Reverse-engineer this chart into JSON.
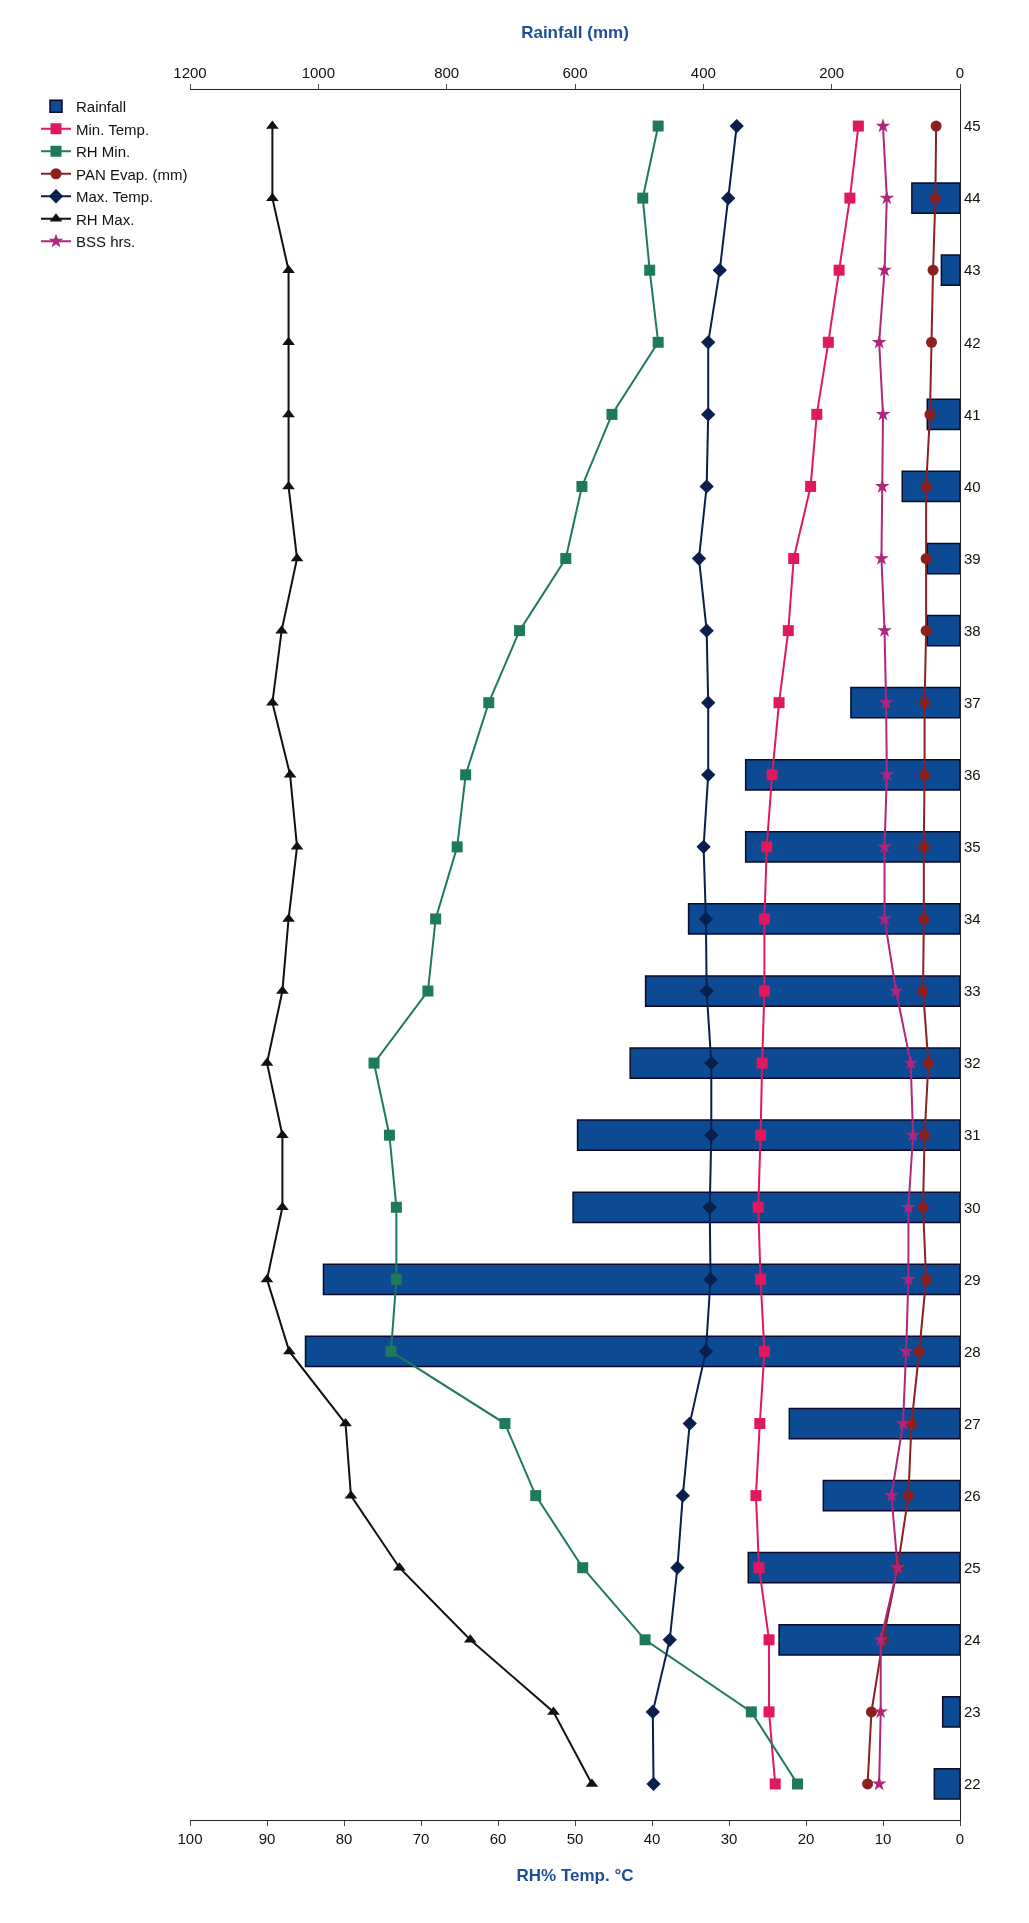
{
  "chart_data": {
    "type": "line",
    "orientation": "horizontal",
    "xlabel": "RH% Temp. °C",
    "x2label": "Rainfall (mm)",
    "categories": [
      "45",
      "44",
      "43",
      "42",
      "41",
      "40",
      "39",
      "38",
      "37",
      "36",
      "35",
      "34",
      "33",
      "32",
      "31",
      "30",
      "29",
      "28",
      "27",
      "26",
      "25",
      "24",
      "23",
      "22"
    ],
    "xlim": [
      100,
      0
    ],
    "xticks": [
      0,
      10,
      20,
      30,
      40,
      50,
      60,
      70,
      80,
      90,
      100
    ],
    "x2lim": [
      1200,
      0
    ],
    "x2ticks": [
      0,
      200,
      400,
      600,
      800,
      1000,
      1200
    ],
    "grid": false,
    "legend": "left",
    "series": [
      {
        "name": "Rainfall",
        "type": "bar",
        "axis": "x2",
        "color": "#0d4a94",
        "values": [
          null,
          75,
          29,
          null,
          51,
          90,
          51,
          51,
          170,
          334,
          334,
          423,
          490,
          514,
          596,
          603,
          992,
          1020,
          266,
          213,
          330,
          282,
          27,
          40
        ]
      },
      {
        "name": "Min. Temp.",
        "color": "#e0185f",
        "marker": "square",
        "values": [
          13.2,
          14.3,
          15.7,
          17.1,
          18.6,
          19.4,
          21.6,
          22.3,
          23.5,
          24.4,
          25.1,
          25.4,
          25.4,
          25.7,
          25.9,
          26.2,
          25.9,
          25.4,
          26.0,
          26.5,
          26.1,
          24.8,
          24.8,
          24.0
        ]
      },
      {
        "name": "RH Min.",
        "color": "#1e7a5a",
        "marker": "square",
        "values": [
          39.2,
          41.2,
          40.3,
          39.2,
          45.2,
          49.1,
          51.2,
          57.2,
          61.2,
          64.2,
          65.3,
          68.1,
          69.1,
          76.1,
          74.1,
          73.2,
          73.2,
          73.9,
          59.1,
          55.1,
          49.0,
          40.9,
          27.1,
          21.1
        ]
      },
      {
        "name": "PAN Evap. (mm)",
        "color": "#8b2020",
        "marker": "circle",
        "values": [
          3.1,
          3.2,
          3.5,
          3.7,
          3.9,
          4.4,
          4.4,
          4.4,
          4.6,
          4.6,
          4.7,
          4.7,
          4.8,
          4.1,
          4.6,
          4.8,
          4.4,
          5.3,
          6.3,
          6.7,
          8.1,
          10.0,
          11.5,
          12.0
        ]
      },
      {
        "name": "Max. Temp.",
        "color": "#0a1f4e",
        "marker": "diamond",
        "values": [
          29.0,
          30.1,
          31.2,
          32.7,
          32.7,
          32.9,
          33.9,
          32.9,
          32.7,
          32.7,
          33.3,
          33.0,
          32.9,
          32.3,
          32.3,
          32.5,
          32.4,
          33.0,
          35.1,
          36.0,
          36.7,
          37.7,
          39.9,
          39.8
        ]
      },
      {
        "name": "RH Max.",
        "color": "#111111",
        "marker": "triangle",
        "values": [
          89.3,
          89.3,
          87.2,
          87.2,
          87.2,
          87.2,
          86.1,
          88.1,
          89.3,
          87.0,
          86.1,
          87.2,
          88.0,
          90.0,
          88.0,
          88.0,
          90.0,
          87.1,
          79.8,
          79.1,
          72.8,
          63.6,
          52.8,
          47.8
        ]
      },
      {
        "name": "BSS hrs.",
        "color": "#b0267a",
        "marker": "star",
        "values": [
          10.0,
          9.5,
          9.8,
          10.5,
          10.0,
          10.1,
          10.2,
          9.8,
          9.6,
          9.5,
          9.8,
          9.8,
          8.3,
          6.4,
          6.1,
          6.7,
          6.7,
          7.0,
          7.4,
          8.9,
          8.1,
          10.3,
          10.3,
          10.5
        ]
      }
    ]
  }
}
